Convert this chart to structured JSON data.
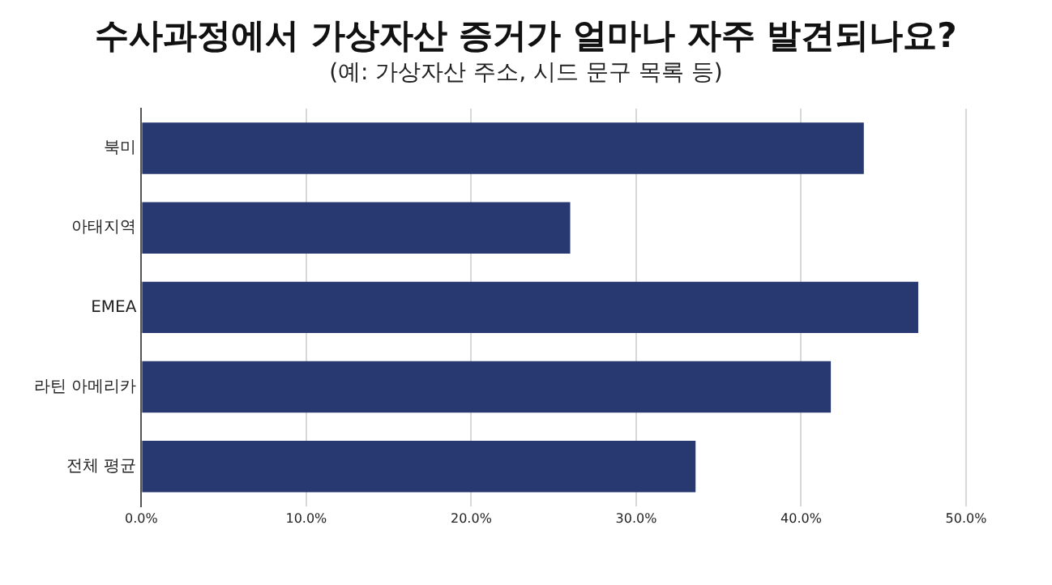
{
  "chart_data": {
    "type": "bar",
    "orientation": "horizontal",
    "title": "수사과정에서 가상자산 증거가 얼마나 자주 발견되나요?",
    "subtitle": "(예: 가상자산 주소, 시드 문구 목록 등)",
    "categories": [
      "북미",
      "아태지역",
      "EMEA",
      "라틴 아메리카",
      "전체 평균"
    ],
    "values": [
      43.8,
      26.0,
      47.1,
      41.8,
      33.6
    ],
    "color": "#283870",
    "xlim": [
      0,
      50
    ],
    "xticks": [
      {
        "value": 0,
        "label": "0.0%"
      },
      {
        "value": 10,
        "label": "10.0%"
      },
      {
        "value": 20,
        "label": "20.0%"
      },
      {
        "value": 30,
        "label": "30.0%"
      },
      {
        "value": 40,
        "label": "40.0%"
      },
      {
        "value": 50,
        "label": "50.0%"
      }
    ],
    "grid": "x"
  }
}
